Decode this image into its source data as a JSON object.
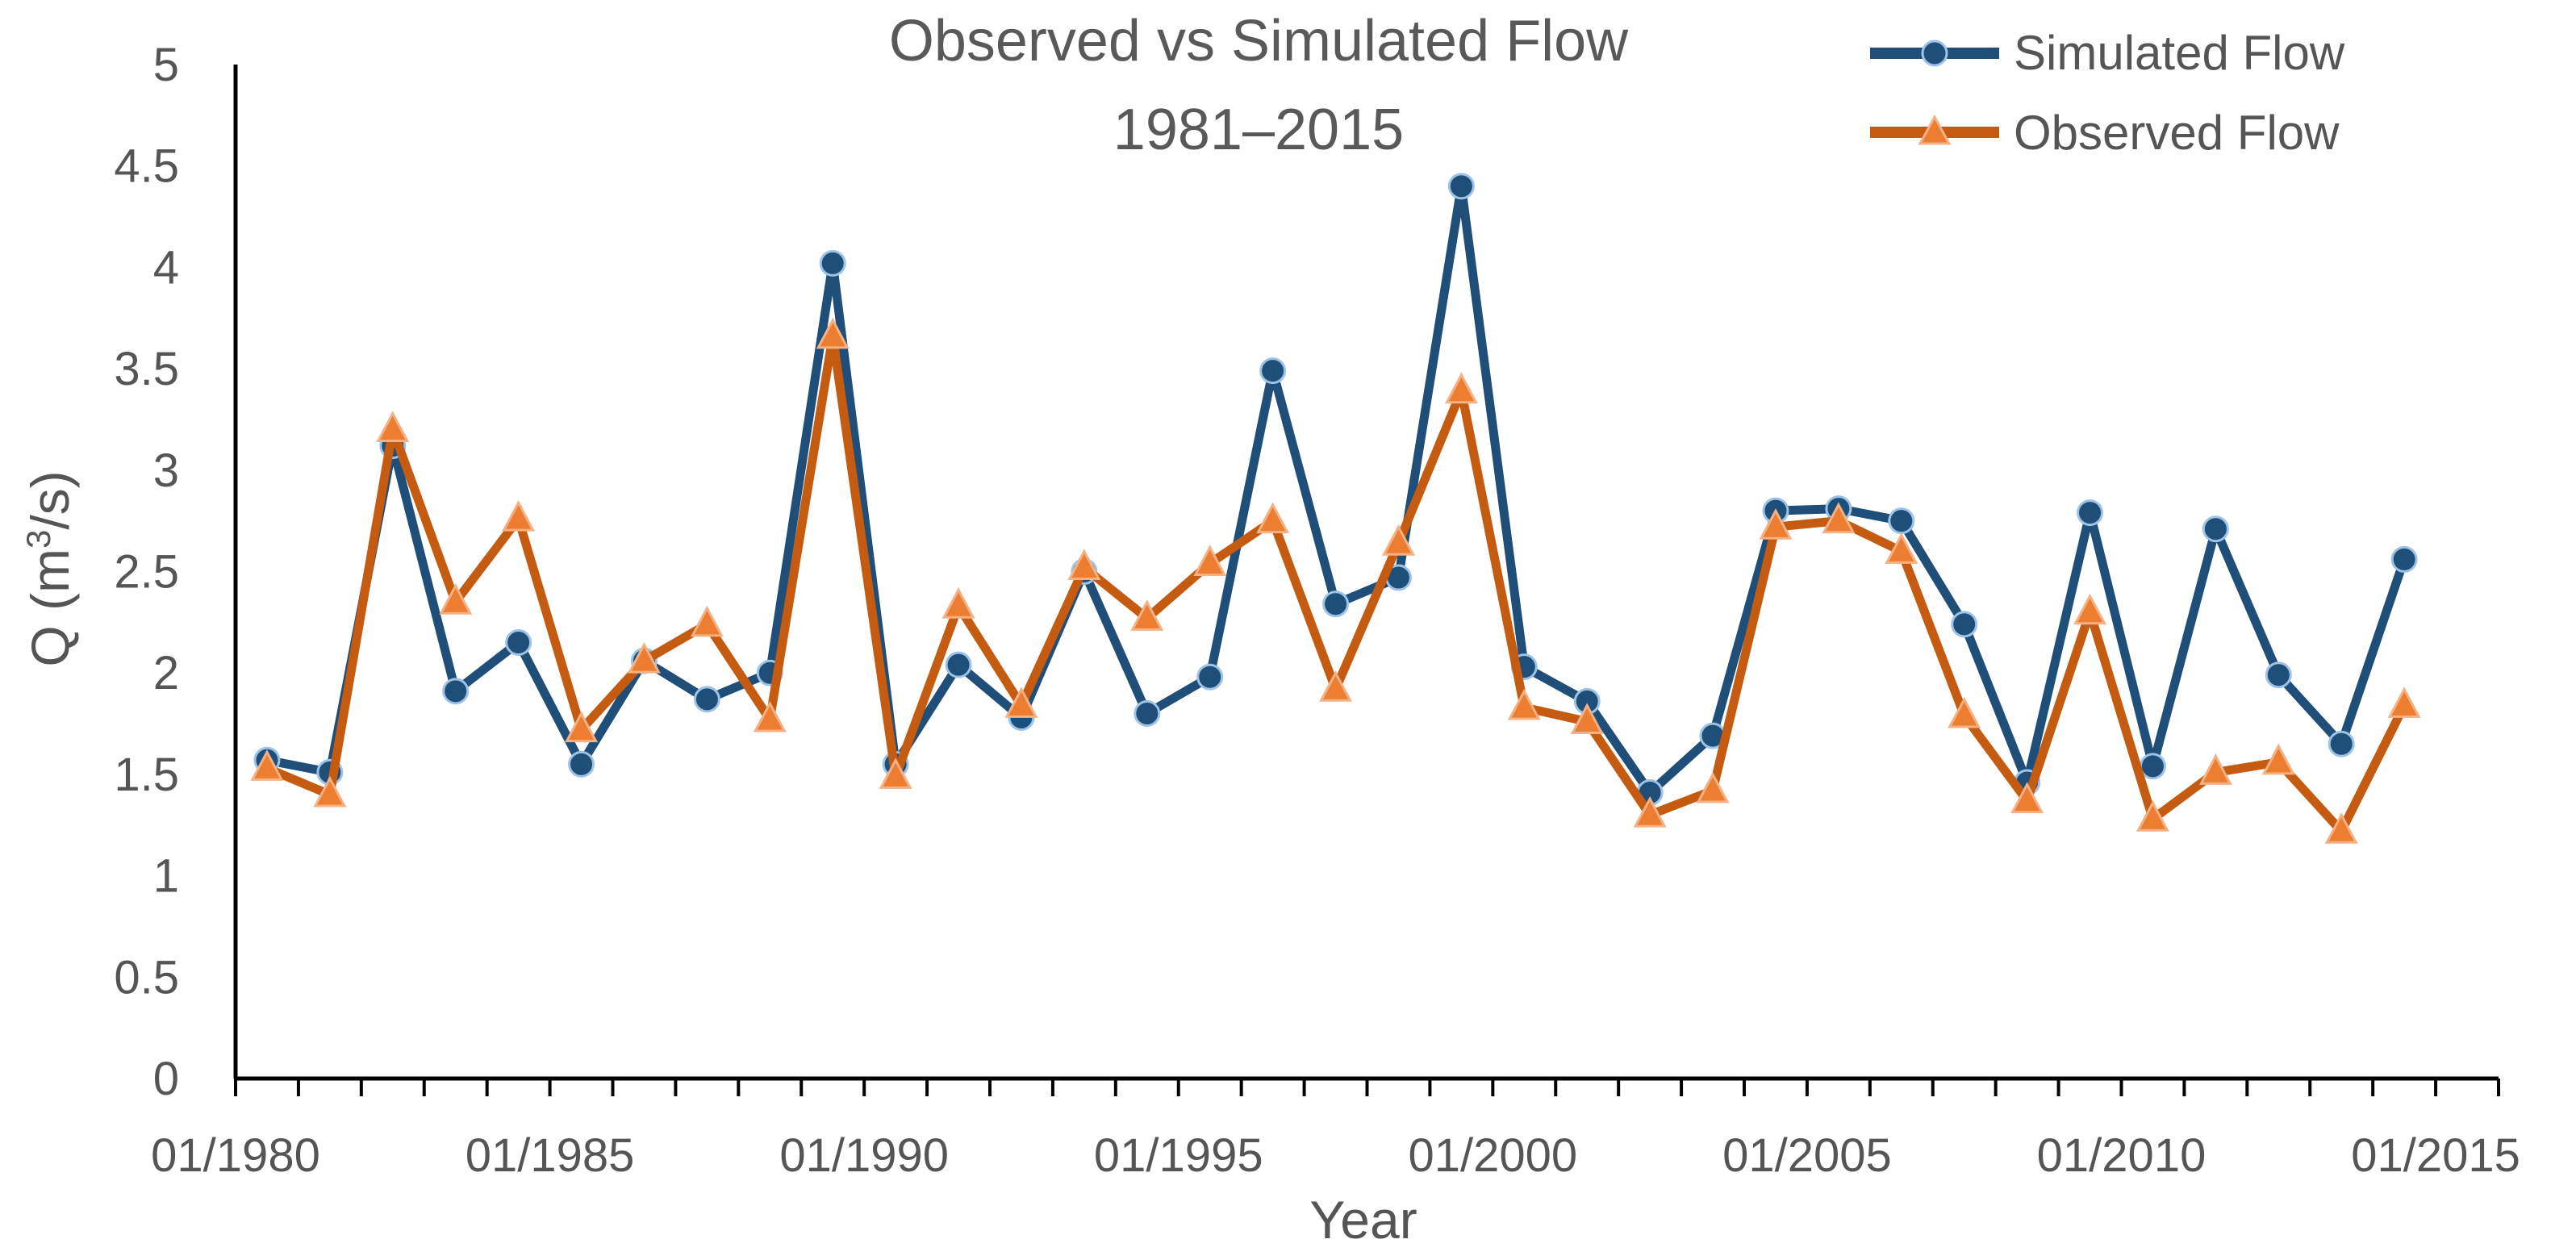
{
  "chart_data": {
    "type": "line",
    "title_lines": [
      "Observed vs Simulated Flow",
      "1981–2015"
    ],
    "xlabel": "Year",
    "ylabel_prefix": "Q (m",
    "ylabel_sup": "3",
    "ylabel_suffix": "/s)",
    "ylim": [
      0,
      5
    ],
    "yticks": [
      "0",
      "0.5",
      "1",
      "1.5",
      "2",
      "2.5",
      "3",
      "3.5",
      "4",
      "4.5",
      "5"
    ],
    "xlim": [
      1980,
      2016
    ],
    "xtick_labels": [
      "01/1980",
      "01/1985",
      "01/1990",
      "01/1995",
      "01/2000",
      "01/2005",
      "01/2010",
      "01/2015"
    ],
    "legend_position": "top-right",
    "x": [
      1980.5,
      1981.5,
      1982.5,
      1983.5,
      1984.5,
      1985.5,
      1986.5,
      1987.5,
      1988.5,
      1989.5,
      1990.5,
      1991.5,
      1992.5,
      1993.5,
      1994.5,
      1995.5,
      1996.5,
      1997.5,
      1998.5,
      1999.5,
      2000.5,
      2001.5,
      2002.5,
      2003.5,
      2004.5,
      2005.5,
      2006.5,
      2007.5,
      2008.5,
      2009.5,
      2010.5,
      2011.5,
      2012.5,
      2013.5,
      2014.5
    ],
    "series": [
      {
        "name": "Simulated Flow",
        "color": "#1f4e79",
        "marker": "circle",
        "values": [
          1.57,
          1.51,
          3.12,
          1.91,
          2.15,
          1.55,
          2.06,
          1.87,
          2.0,
          4.02,
          1.55,
          2.04,
          1.78,
          2.5,
          1.8,
          1.98,
          3.49,
          2.34,
          2.47,
          4.4,
          2.03,
          1.86,
          1.41,
          1.69,
          2.8,
          2.81,
          2.75,
          2.24,
          1.46,
          2.79,
          1.54,
          2.71,
          1.99,
          1.65,
          2.56
        ]
      },
      {
        "name": "Observed Flow",
        "color": "#c55a11",
        "marker": "triangle",
        "values": [
          1.53,
          1.4,
          3.2,
          2.35,
          2.76,
          1.72,
          2.06,
          2.24,
          1.77,
          3.66,
          1.49,
          2.33,
          1.84,
          2.52,
          2.27,
          2.54,
          2.75,
          1.92,
          2.64,
          3.39,
          1.83,
          1.76,
          1.3,
          1.42,
          2.72,
          2.75,
          2.6,
          1.79,
          1.37,
          2.3,
          1.28,
          1.51,
          1.56,
          1.22,
          1.84
        ]
      }
    ]
  }
}
